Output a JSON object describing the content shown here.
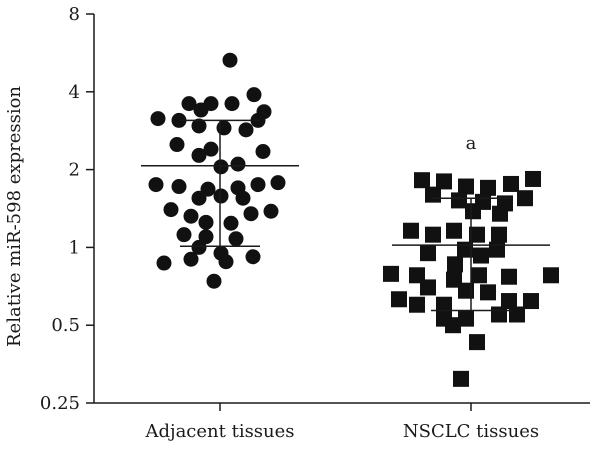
{
  "chart_data": {
    "type": "scatter",
    "ylabel": "Relative miR-598 expression",
    "xlabel": "",
    "yscale": "log2",
    "ylim": [
      0.25,
      8
    ],
    "yticks": [
      {
        "value": 0.25,
        "label": "0.25"
      },
      {
        "value": 0.5,
        "label": "0.5"
      },
      {
        "value": 1,
        "label": "1"
      },
      {
        "value": 2,
        "label": "2"
      },
      {
        "value": 4,
        "label": "4"
      },
      {
        "value": 8,
        "label": "8"
      }
    ],
    "categories": [
      "Adjacent tissues",
      "NSCLC tissues"
    ],
    "annotation": {
      "text": "a",
      "category_index": 1,
      "y": 2.4
    },
    "series": [
      {
        "marker": "circle",
        "category_index": 0,
        "mean": 2.07,
        "sd_upper": 3.1,
        "sd_lower": 1.01,
        "points": [
          {
            "x": 0.1,
            "y": 5.3
          },
          {
            "x": 0.34,
            "y": 3.9
          },
          {
            "x": -0.31,
            "y": 3.6
          },
          {
            "x": -0.09,
            "y": 3.6
          },
          {
            "x": 0.12,
            "y": 3.6
          },
          {
            "x": -0.19,
            "y": 3.4
          },
          {
            "x": 0.44,
            "y": 3.35
          },
          {
            "x": -0.62,
            "y": 3.15
          },
          {
            "x": -0.41,
            "y": 3.1
          },
          {
            "x": 0.38,
            "y": 3.1
          },
          {
            "x": -0.21,
            "y": 2.95
          },
          {
            "x": 0.04,
            "y": 2.9
          },
          {
            "x": 0.26,
            "y": 2.85
          },
          {
            "x": -0.43,
            "y": 2.5
          },
          {
            "x": -0.09,
            "y": 2.4
          },
          {
            "x": 0.43,
            "y": 2.35
          },
          {
            "x": -0.21,
            "y": 2.27
          },
          {
            "x": 0.01,
            "y": 2.05
          },
          {
            "x": 0.18,
            "y": 2.1
          },
          {
            "x": -0.64,
            "y": 1.75
          },
          {
            "x": -0.41,
            "y": 1.72
          },
          {
            "x": -0.12,
            "y": 1.68
          },
          {
            "x": 0.18,
            "y": 1.7
          },
          {
            "x": 0.38,
            "y": 1.75
          },
          {
            "x": 0.58,
            "y": 1.78
          },
          {
            "x": -0.21,
            "y": 1.55
          },
          {
            "x": 0.01,
            "y": 1.58
          },
          {
            "x": 0.23,
            "y": 1.55
          },
          {
            "x": -0.49,
            "y": 1.4
          },
          {
            "x": -0.29,
            "y": 1.32
          },
          {
            "x": 0.31,
            "y": 1.35
          },
          {
            "x": 0.51,
            "y": 1.38
          },
          {
            "x": -0.14,
            "y": 1.25
          },
          {
            "x": 0.11,
            "y": 1.24
          },
          {
            "x": -0.36,
            "y": 1.12
          },
          {
            "x": -0.14,
            "y": 1.1
          },
          {
            "x": 0.16,
            "y": 1.08
          },
          {
            "x": -0.21,
            "y": 1.0
          },
          {
            "x": 0.01,
            "y": 0.95
          },
          {
            "x": -0.56,
            "y": 0.87
          },
          {
            "x": -0.29,
            "y": 0.9
          },
          {
            "x": 0.06,
            "y": 0.88
          },
          {
            "x": 0.33,
            "y": 0.92
          },
          {
            "x": -0.06,
            "y": 0.74
          }
        ]
      },
      {
        "marker": "square",
        "category_index": 1,
        "mean": 1.02,
        "sd_upper": 1.55,
        "sd_lower": 0.57,
        "points": [
          {
            "x": -0.49,
            "y": 1.82
          },
          {
            "x": -0.27,
            "y": 1.8
          },
          {
            "x": -0.05,
            "y": 1.72
          },
          {
            "x": 0.17,
            "y": 1.7
          },
          {
            "x": 0.4,
            "y": 1.76
          },
          {
            "x": 0.62,
            "y": 1.84
          },
          {
            "x": -0.38,
            "y": 1.6
          },
          {
            "x": -0.12,
            "y": 1.52
          },
          {
            "x": 0.12,
            "y": 1.5
          },
          {
            "x": 0.34,
            "y": 1.48
          },
          {
            "x": 0.54,
            "y": 1.55
          },
          {
            "x": 0.02,
            "y": 1.38
          },
          {
            "x": 0.29,
            "y": 1.35
          },
          {
            "x": -0.6,
            "y": 1.16
          },
          {
            "x": -0.38,
            "y": 1.12
          },
          {
            "x": -0.17,
            "y": 1.16
          },
          {
            "x": 0.06,
            "y": 1.12
          },
          {
            "x": 0.28,
            "y": 1.12
          },
          {
            "x": -0.06,
            "y": 0.98
          },
          {
            "x": 0.26,
            "y": 0.98
          },
          {
            "x": -0.43,
            "y": 0.95
          },
          {
            "x": 0.1,
            "y": 0.93
          },
          {
            "x": -0.16,
            "y": 0.86
          },
          {
            "x": -0.8,
            "y": 0.79
          },
          {
            "x": -0.54,
            "y": 0.78
          },
          {
            "x": -0.17,
            "y": 0.75
          },
          {
            "x": 0.08,
            "y": 0.78
          },
          {
            "x": 0.38,
            "y": 0.77
          },
          {
            "x": 0.8,
            "y": 0.78
          },
          {
            "x": -0.43,
            "y": 0.7
          },
          {
            "x": -0.05,
            "y": 0.68
          },
          {
            "x": 0.17,
            "y": 0.67
          },
          {
            "x": -0.72,
            "y": 0.63
          },
          {
            "x": -0.54,
            "y": 0.6
          },
          {
            "x": -0.27,
            "y": 0.6
          },
          {
            "x": 0.38,
            "y": 0.62
          },
          {
            "x": 0.6,
            "y": 0.62
          },
          {
            "x": -0.27,
            "y": 0.53
          },
          {
            "x": 0.28,
            "y": 0.55
          },
          {
            "x": 0.46,
            "y": 0.55
          },
          {
            "x": -0.05,
            "y": 0.53
          },
          {
            "x": -0.18,
            "y": 0.5
          },
          {
            "x": 0.06,
            "y": 0.43
          },
          {
            "x": -0.1,
            "y": 0.31
          }
        ]
      }
    ]
  }
}
